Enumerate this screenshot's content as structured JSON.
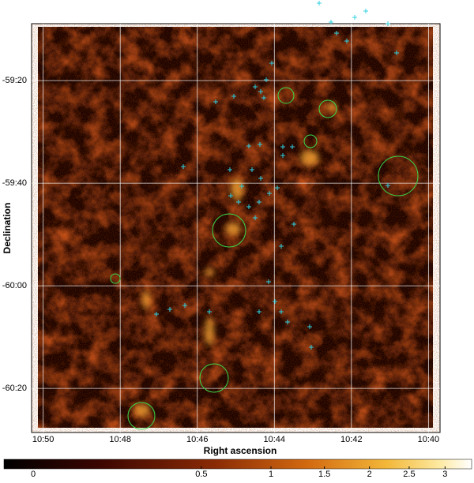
{
  "chart_data": {
    "type": "sky-image",
    "x_label": "Right ascension",
    "y_label": "Declination",
    "xlim": [
      650.3,
      639.7
    ],
    "xticks": [
      {
        "value": 650,
        "label": "10:50"
      },
      {
        "value": 648,
        "label": "10:48"
      },
      {
        "value": 646,
        "label": "10:46"
      },
      {
        "value": 644,
        "label": "10:44"
      },
      {
        "value": 642,
        "label": "10:42"
      },
      {
        "value": 640,
        "label": "10:40"
      }
    ],
    "ylim": [
      -3628.6,
      -3548.9
    ],
    "yticks": [
      {
        "value": -3560,
        "label": "-59:20"
      },
      {
        "value": -3580,
        "label": "-59:40"
      },
      {
        "value": -3600,
        "label": "-60:00"
      },
      {
        "value": -3620,
        "label": "-60:20"
      }
    ],
    "grid": true,
    "colorbar_ticks": [
      0,
      0.5,
      1,
      1.5,
      2,
      2.5,
      3
    ]
  }
}
